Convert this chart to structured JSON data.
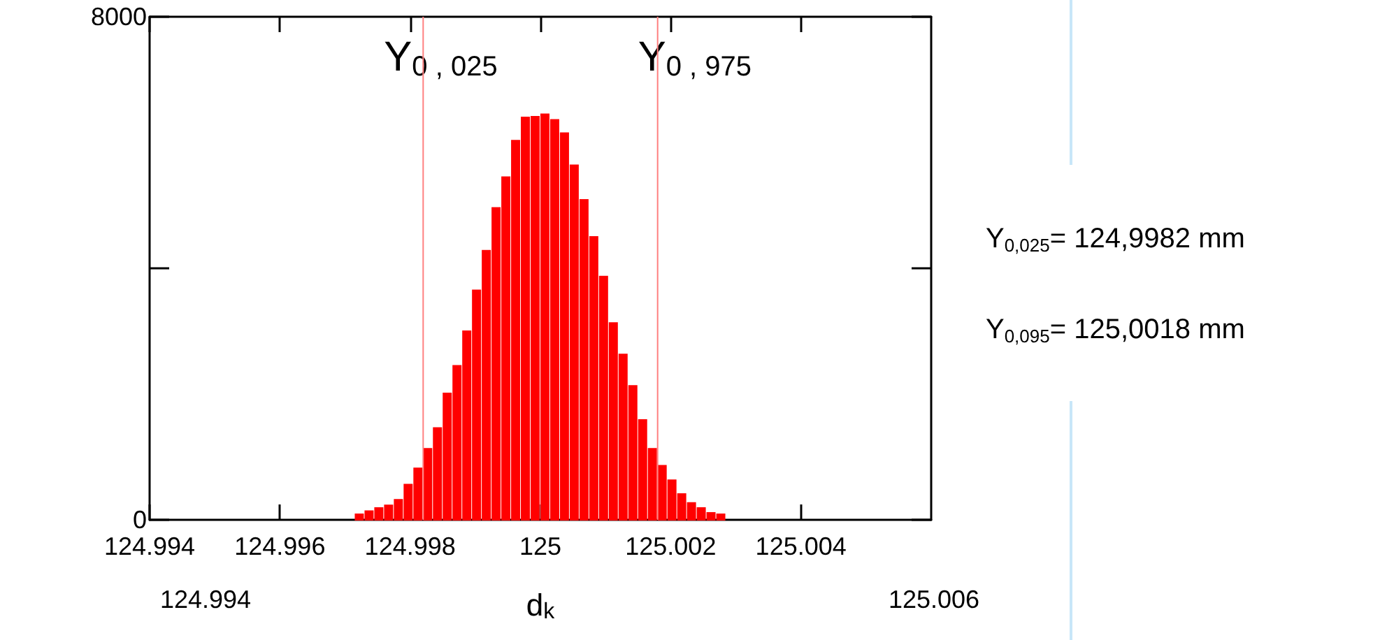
{
  "chart_data": {
    "type": "histogram",
    "xlabel": "d$_{k}$",
    "bins": [
      124.99715,
      124.9973,
      124.99745,
      124.9976,
      124.99775,
      124.9979,
      124.99805,
      124.9982,
      124.99835,
      124.9985,
      124.99865,
      124.9988,
      124.99895,
      124.9991,
      124.99925,
      124.9994,
      124.99955,
      124.9997,
      124.99985,
      125.0,
      125.00015,
      125.0003,
      125.00045,
      125.0006,
      125.00075,
      125.0009,
      125.00105,
      125.0012,
      125.00135,
      125.0015,
      125.00165,
      125.0018,
      125.00195,
      125.0021,
      125.00225,
      125.0024,
      125.00255,
      125.0027,
      125.00285
    ],
    "values": [
      90,
      140,
      190,
      230,
      320,
      560,
      820,
      1130,
      1460,
      2010,
      2450,
      3000,
      3650,
      4280,
      4960,
      5450,
      6030,
      6400,
      6410,
      6450,
      6360,
      6150,
      5640,
      5090,
      4500,
      3870,
      3130,
      2630,
      2130,
      1590,
      1130,
      860,
      630,
      410,
      270,
      190,
      110,
      90
    ],
    "color": "#ff0000",
    "xlim": [
      124.994,
      125.006
    ],
    "xticks": [
      124.994,
      124.996,
      124.998,
      125,
      125.002,
      125.004
    ],
    "ylim": [
      0,
      8000
    ],
    "yticks": [
      0,
      {
        "value": 4000,
        "label": null
      },
      8000
    ],
    "grid": false,
    "ref_lines": [
      {
        "axis": "x",
        "value": 124.9982,
        "label": "Y$_{0 , 025}$",
        "color": "#ff8080"
      },
      {
        "axis": "x",
        "value": 125.0018,
        "label": "Y$_{0 , 975}$",
        "color": "#ff8080"
      }
    ],
    "annotations": [
      "124.994",
      "125.006",
      "Y$_{0,025}$= 124,9982 mm",
      "Y$_{0,095}$= 125,0018 mm"
    ]
  }
}
